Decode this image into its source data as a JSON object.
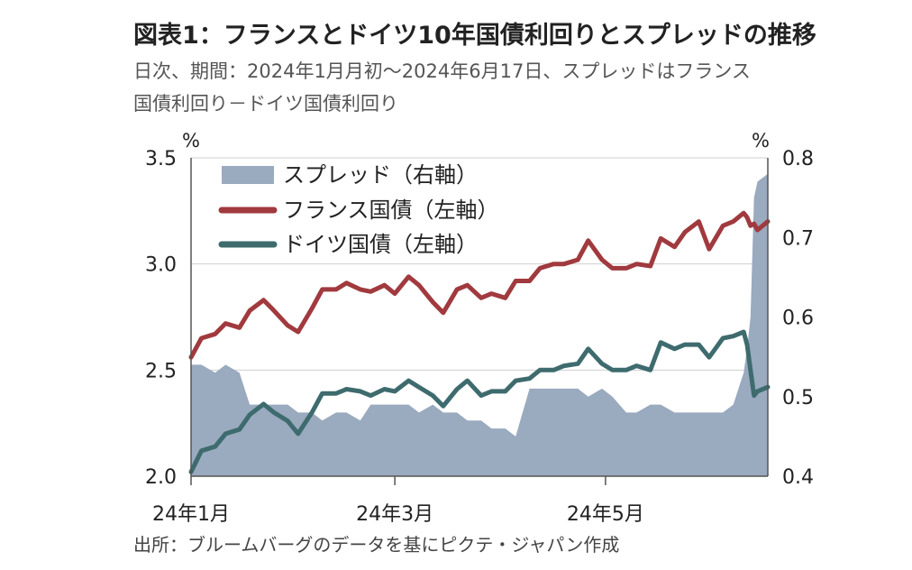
{
  "chart_data": {
    "type": "line",
    "title": "図表1：フランスとドイツ10年国債利回りとスプレッドの推移",
    "subtitle_lines": [
      "日次、期間：2024年1月月初～2024年6月17日、スプレッドはフランス",
      "国債利回り－ドイツ国債利回り"
    ],
    "source": "出所：ブルームバーグのデータを基にピクテ・ジャパン作成",
    "left_axis": {
      "unit": "%",
      "ylim": [
        2.0,
        3.5
      ],
      "ticks": [
        "2.0",
        "2.5",
        "3.0",
        "3.5"
      ]
    },
    "right_axis": {
      "unit": "%",
      "ylim": [
        0.4,
        0.8
      ],
      "ticks": [
        "0.4",
        "0.5",
        "0.6",
        "0.7",
        "0.8"
      ]
    },
    "x_axis": {
      "start": "2024-01-02",
      "end": "2024-06-17",
      "tick_labels": [
        "24年1月",
        "24年3月",
        "24年5月"
      ],
      "tick_dates": [
        "2024-01-01",
        "2024-03-01",
        "2024-05-01"
      ]
    },
    "x": [
      "2024-01-02",
      "2024-01-05",
      "2024-01-09",
      "2024-01-12",
      "2024-01-16",
      "2024-01-19",
      "2024-01-23",
      "2024-01-26",
      "2024-01-30",
      "2024-02-02",
      "2024-02-06",
      "2024-02-09",
      "2024-02-13",
      "2024-02-16",
      "2024-02-20",
      "2024-02-23",
      "2024-02-27",
      "2024-03-01",
      "2024-03-05",
      "2024-03-08",
      "2024-03-12",
      "2024-03-15",
      "2024-03-19",
      "2024-03-22",
      "2024-03-26",
      "2024-03-29",
      "2024-04-02",
      "2024-04-05",
      "2024-04-09",
      "2024-04-12",
      "2024-04-16",
      "2024-04-19",
      "2024-04-23",
      "2024-04-26",
      "2024-04-30",
      "2024-05-03",
      "2024-05-07",
      "2024-05-10",
      "2024-05-14",
      "2024-05-17",
      "2024-05-21",
      "2024-05-24",
      "2024-05-28",
      "2024-05-31",
      "2024-06-04",
      "2024-06-07",
      "2024-06-10",
      "2024-06-11",
      "2024-06-12",
      "2024-06-13",
      "2024-06-14",
      "2024-06-17"
    ],
    "series": [
      {
        "name": "スプレッド（右軸）",
        "kind": "area",
        "axis": "right",
        "color": "#9AAABF",
        "values": [
          0.54,
          0.54,
          0.53,
          0.54,
          0.53,
          0.49,
          0.49,
          0.49,
          0.49,
          0.48,
          0.48,
          0.47,
          0.48,
          0.48,
          0.47,
          0.49,
          0.49,
          0.49,
          0.49,
          0.48,
          0.49,
          0.48,
          0.48,
          0.47,
          0.47,
          0.46,
          0.46,
          0.45,
          0.51,
          0.51,
          0.51,
          0.51,
          0.51,
          0.5,
          0.51,
          0.5,
          0.48,
          0.48,
          0.49,
          0.49,
          0.48,
          0.48,
          0.48,
          0.48,
          0.48,
          0.49,
          0.53,
          0.56,
          0.6,
          0.75,
          0.77,
          0.78
        ]
      },
      {
        "name": "フランス国債（左軸）",
        "kind": "line",
        "axis": "left",
        "color": "#A03A3E",
        "values": [
          2.56,
          2.65,
          2.67,
          2.72,
          2.7,
          2.78,
          2.83,
          2.78,
          2.71,
          2.68,
          2.79,
          2.88,
          2.88,
          2.91,
          2.88,
          2.87,
          2.9,
          2.86,
          2.94,
          2.9,
          2.82,
          2.77,
          2.88,
          2.9,
          2.84,
          2.86,
          2.84,
          2.92,
          2.92,
          2.98,
          3.0,
          3.0,
          3.02,
          3.11,
          3.02,
          2.98,
          2.98,
          3.0,
          2.99,
          3.12,
          3.08,
          3.15,
          3.2,
          3.07,
          3.18,
          3.2,
          3.24,
          3.22,
          3.18,
          3.19,
          3.16,
          3.2
        ]
      },
      {
        "name": "ドイツ国債（左軸）",
        "kind": "line",
        "axis": "left",
        "color": "#3E6B6E",
        "values": [
          2.02,
          2.12,
          2.14,
          2.2,
          2.22,
          2.29,
          2.34,
          2.3,
          2.26,
          2.2,
          2.3,
          2.39,
          2.39,
          2.41,
          2.4,
          2.38,
          2.41,
          2.4,
          2.45,
          2.42,
          2.38,
          2.33,
          2.41,
          2.45,
          2.38,
          2.4,
          2.4,
          2.45,
          2.46,
          2.5,
          2.5,
          2.52,
          2.53,
          2.6,
          2.53,
          2.5,
          2.5,
          2.52,
          2.5,
          2.63,
          2.6,
          2.62,
          2.62,
          2.56,
          2.65,
          2.66,
          2.68,
          2.62,
          2.5,
          2.38,
          2.4,
          2.42
        ]
      }
    ],
    "legend": {
      "placement": "top-left",
      "items": [
        "スプレッド（右軸）",
        "フランス国債（左軸）",
        "ドイツ国債（左軸）"
      ]
    },
    "grid": "horizontal"
  }
}
